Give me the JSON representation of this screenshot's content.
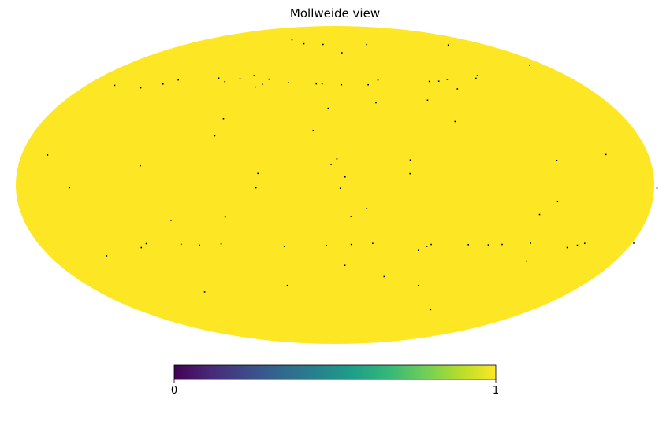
{
  "chart_data": {
    "type": "heatmap",
    "projection": "mollweide",
    "title": "Mollweide view",
    "map_fill_value": 1,
    "missing_pixel_color": "#000000",
    "colormap": "viridis",
    "colormap_stops": [
      "#440154",
      "#482878",
      "#3e4989",
      "#31688e",
      "#26828e",
      "#1f9e89",
      "#35b779",
      "#6ece58",
      "#b5de2b",
      "#fde725"
    ],
    "colorbar": {
      "orientation": "horizontal",
      "vmin": 0,
      "vmax": 1,
      "tick_labels": [
        "0",
        "1"
      ]
    },
    "grid": false,
    "missing_pixels": [
      [
        -134.5,
        72.0
      ],
      [
        -38.2,
        72.4
      ],
      [
        14.4,
        72.4
      ],
      [
        38.2,
        72.9
      ],
      [
        59.6,
        75.9
      ],
      [
        -7.1,
        66.8
      ],
      [
        -167.0,
        59.2
      ],
      [
        -110.6,
        53.2
      ],
      [
        -107.2,
        51.7
      ],
      [
        -84.6,
        51.1
      ],
      [
        -77.2,
        50.1
      ],
      [
        -70.1,
        50.0
      ],
      [
        -32.3,
        50.8
      ],
      [
        -4.7,
        48.2
      ],
      [
        13.7,
        48.7
      ],
      [
        -24.1,
        48.2
      ],
      [
        9.4,
        48.7
      ],
      [
        34.3,
        49.3
      ],
      [
        49.8,
        51.2
      ],
      [
        62.9,
        53.2
      ],
      [
        71.9,
        51.4
      ],
      [
        81.7,
        49.9
      ],
      [
        88.5,
        51.8
      ],
      [
        117.7,
        50.8
      ],
      [
        125.5,
        48.6
      ],
      [
        138.4,
        46.6
      ],
      [
        159.4,
        47.9
      ],
      [
        52.9,
        48.4
      ],
      [
        57.1,
        47.0
      ],
      [
        -86.6,
        46.0
      ],
      [
        -61.7,
        40.2
      ],
      [
        -27.0,
        38.9
      ],
      [
        4.4,
        36.1
      ],
      [
        -73.8,
        29.6
      ],
      [
        69.2,
        31.0
      ],
      [
        13.1,
        25.3
      ],
      [
        71.3,
        22.8
      ],
      [
        -155.6,
        14.0
      ],
      [
        -126.6,
        11.3
      ],
      [
        -43.0,
        11.5
      ],
      [
        -1.1,
        12.0
      ],
      [
        2.2,
        9.4
      ],
      [
        110.6,
        8.8
      ],
      [
        165.0,
        13.8
      ],
      [
        -42.4,
        5.2
      ],
      [
        -5.7,
        3.7
      ],
      [
        43.6,
        5.3
      ],
      [
        -181.6,
        -1.5
      ],
      [
        -3.0,
        -1.5
      ],
      [
        44.6,
        -1.3
      ],
      [
        149.8,
        -1.3
      ],
      [
        -126.2,
        -7.6
      ],
      [
        -18.1,
        -10.8
      ],
      [
        -117.4,
        -13.6
      ],
      [
        -9.2,
        -14.5
      ],
      [
        63.2,
        -14.7
      ],
      [
        94.8,
        -16.3
      ],
      [
        -181.0,
        -27.1
      ],
      [
        -151.4,
        -27.2
      ],
      [
        -147.7,
        -28.1
      ],
      [
        -142.4,
        -29.2
      ],
      [
        -118.5,
        -27.1
      ],
      [
        -101.6,
        -27.7
      ],
      [
        -93.3,
        -27.9
      ],
      [
        -81.1,
        -27.8
      ],
      [
        -58.5,
        -27.7
      ],
      [
        -56.2,
        -28.6
      ],
      [
        -51.6,
        -30.6
      ],
      [
        -22.9,
        -27.2
      ],
      [
        -9.9,
        -27.7
      ],
      [
        5.3,
        -28.2
      ],
      [
        31.0,
        -28.6
      ],
      [
        69.1,
        -27.4
      ],
      [
        82.6,
        -28.0
      ],
      [
        93.5,
        -27.6
      ],
      [
        114.5,
        -27.3
      ],
      [
        118.8,
        -29.2
      ],
      [
        143.8,
        -33.2
      ],
      [
        -123.0,
        -35.8
      ],
      [
        -6.5,
        -38.0
      ],
      [
        -33.9,
        -43.7
      ],
      [
        -60.8,
        -48.4
      ],
      [
        34.7,
        -48.4
      ],
      [
        99.4,
        -51.9
      ],
      [
        -86.9,
        -62.1
      ]
    ]
  }
}
